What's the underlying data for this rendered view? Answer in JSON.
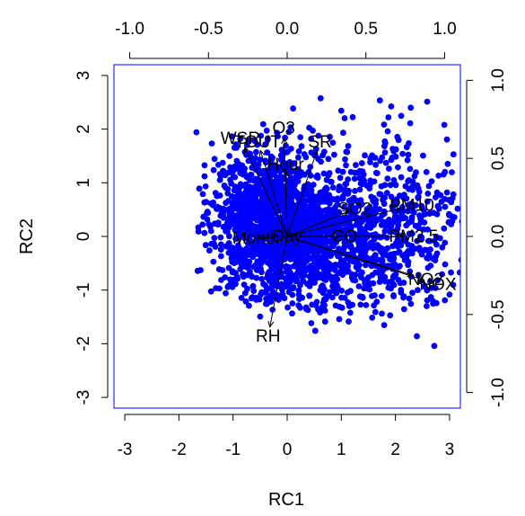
{
  "chart_data": {
    "type": "biplot",
    "xlabel": "RC1",
    "ylabel": "RC2",
    "xlim": [
      -3.2,
      3.2
    ],
    "ylim": [
      -3.2,
      3.2
    ],
    "loading_lim": [
      -1.1,
      1.1
    ],
    "bottom_ticks": [
      -3,
      -2,
      -1,
      0,
      1,
      2,
      3
    ],
    "left_ticks": [
      -3,
      -2,
      -1,
      0,
      1,
      2,
      3
    ],
    "top_ticks": [
      -1.0,
      -0.5,
      0.0,
      0.5,
      1.0
    ],
    "right_ticks": [
      -1.0,
      -0.5,
      0.0,
      0.5,
      1.0
    ],
    "colors": {
      "points": "#0000ff",
      "frame": "#0000ff",
      "arrows": "#000000"
    },
    "loadings": [
      {
        "name": "O3",
        "rc1": -0.02,
        "rc2": 0.63
      },
      {
        "name": "WSR",
        "rc1": -0.27,
        "rc2": 0.57
      },
      {
        "name": "TOUT",
        "rc1": -0.17,
        "rc2": 0.55
      },
      {
        "name": "SR",
        "rc1": 0.19,
        "rc2": 0.55
      },
      {
        "name": "Hour",
        "rc1": -0.01,
        "rc2": 0.42
      },
      {
        "name": "SO2",
        "rc1": 0.39,
        "rc2": 0.16
      },
      {
        "name": "PM10",
        "rc1": 0.72,
        "rc2": 0.18
      },
      {
        "name": "PM2.5",
        "rc1": 0.73,
        "rc2": 0.0
      },
      {
        "name": "CO",
        "rc1": 0.33,
        "rc2": 0.0
      },
      {
        "name": "Day",
        "rc1": 0.0,
        "rc2": 0.0
      },
      {
        "name": "Month",
        "rc1": -0.18,
        "rc2": -0.01
      },
      {
        "name": "NO2",
        "rc1": 0.8,
        "rc2": -0.25
      },
      {
        "name": "NOX",
        "rc1": 0.87,
        "rc2": -0.28
      },
      {
        "name": "RH",
        "rc1": -0.11,
        "rc2": -0.58
      }
    ]
  }
}
